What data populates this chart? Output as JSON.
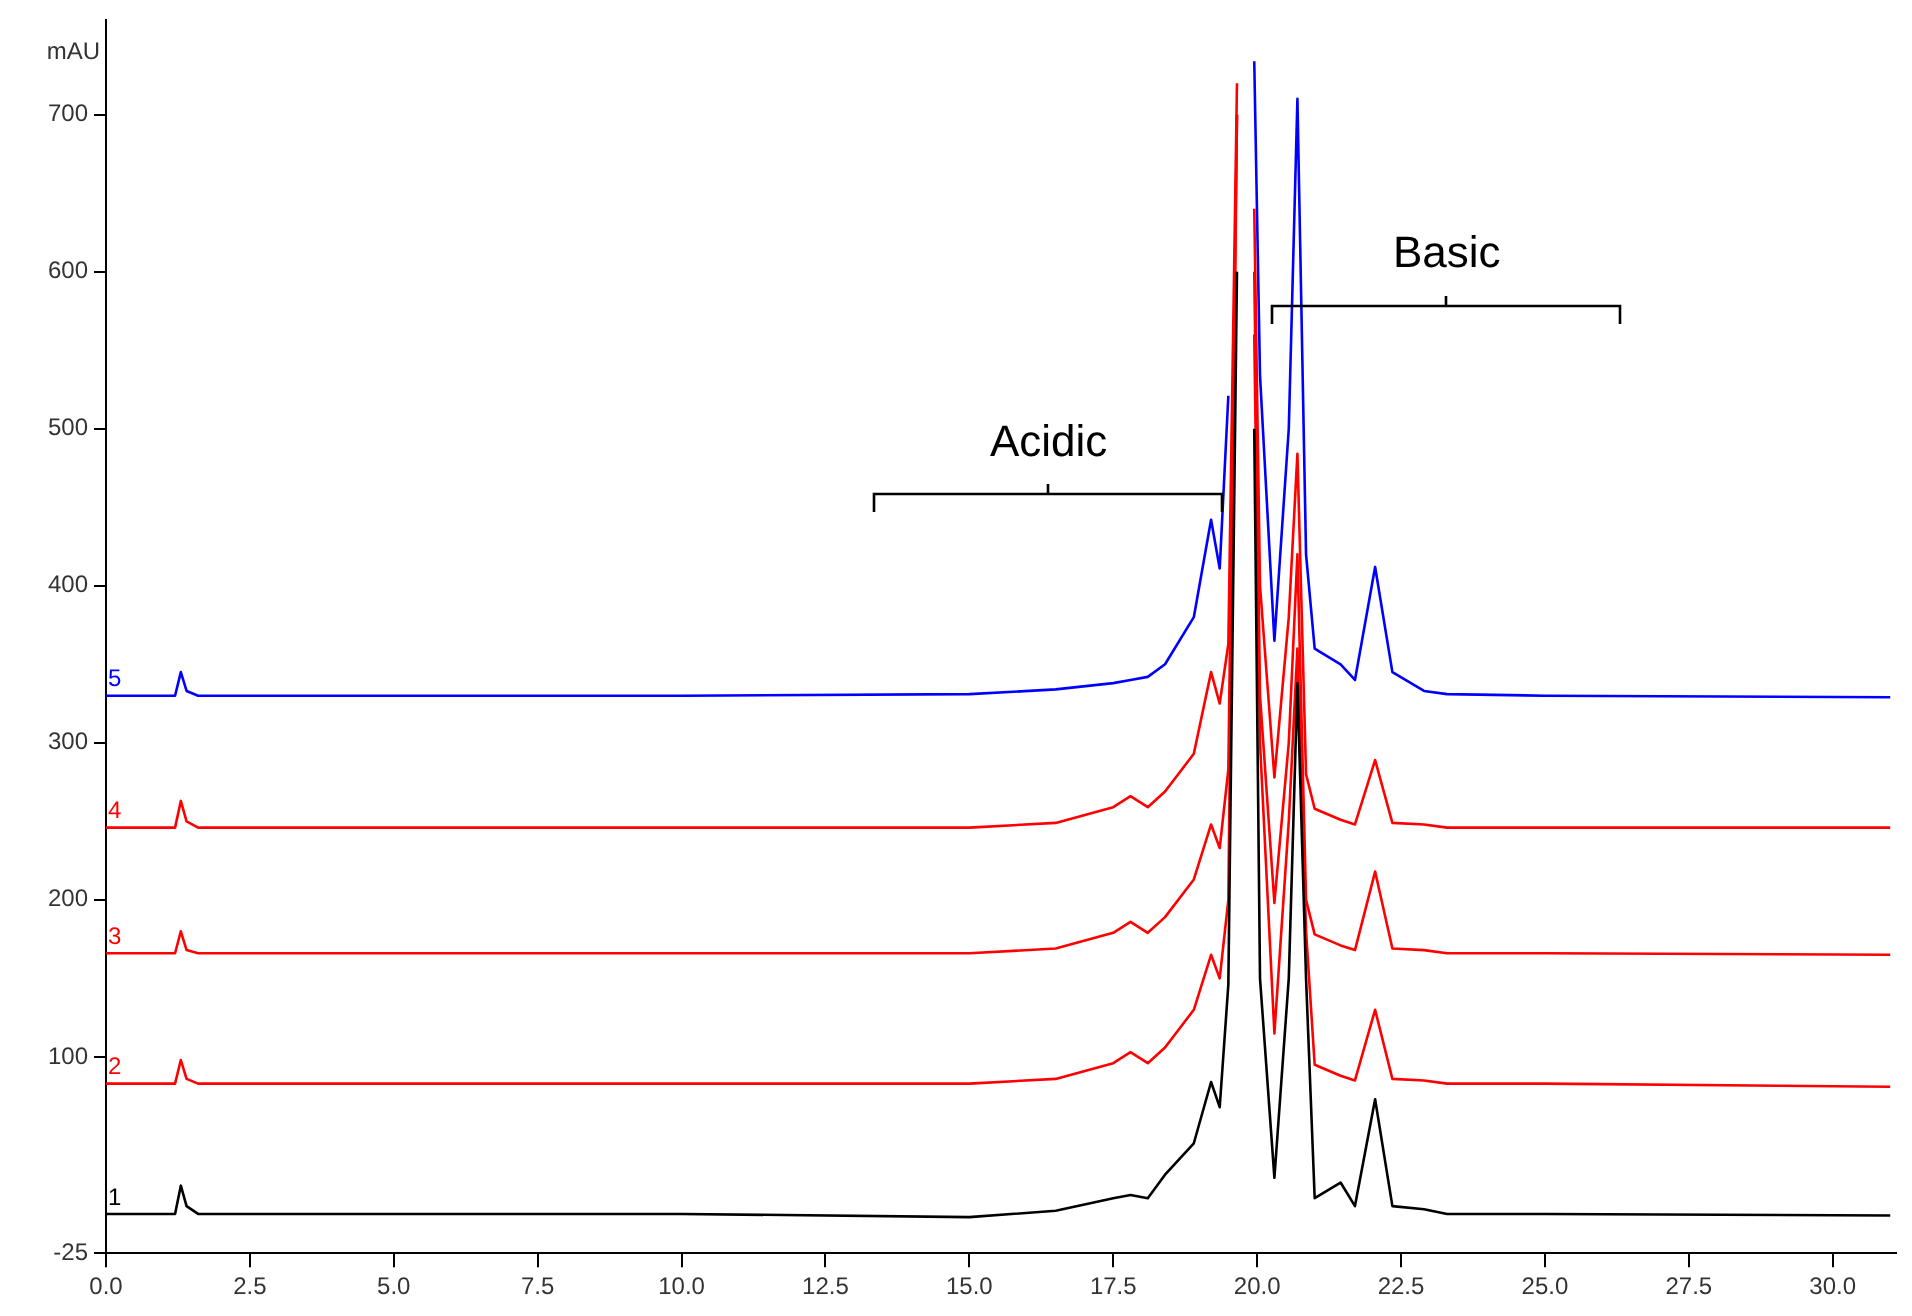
{
  "chart_data": {
    "type": "line",
    "ylabel": "mAU",
    "xlim": [
      0,
      31.1
    ],
    "ylim": [
      -25,
      760
    ],
    "xticks": [
      {
        "value": 0,
        "label": "0.0"
      },
      {
        "value": 2.5,
        "label": "2.5"
      },
      {
        "value": 5,
        "label": "5.0"
      },
      {
        "value": 7.5,
        "label": "7.5"
      },
      {
        "value": 10,
        "label": "10.0"
      },
      {
        "value": 12.5,
        "label": "12.5"
      },
      {
        "value": 15,
        "label": "15.0"
      },
      {
        "value": 17.5,
        "label": "17.5"
      },
      {
        "value": 20,
        "label": "20.0"
      },
      {
        "value": 22.5,
        "label": "22.5"
      },
      {
        "value": 25,
        "label": "25.0"
      },
      {
        "value": 27.5,
        "label": "27.5"
      },
      {
        "value": 30,
        "label": "30.0"
      }
    ],
    "yticks": [
      -25,
      100,
      200,
      300,
      400,
      500,
      600,
      700
    ],
    "grid": false,
    "legend": false,
    "marker": "none",
    "line_style": "solid",
    "x": [
      0,
      1.2,
      1.3,
      1.4,
      1.6,
      10,
      15,
      16.5,
      17.5,
      17.8,
      18.1,
      18.4,
      18.9,
      19.2,
      19.35,
      19.5,
      19.65,
      19.75,
      19.85,
      19.95,
      20.05,
      20.3,
      20.55,
      20.7,
      20.85,
      21.0,
      21.45,
      21.7,
      22.05,
      22.35,
      22.9,
      23.3,
      25,
      31
    ],
    "series": [
      {
        "name": "1",
        "color": "#000000",
        "values": [
          0,
          0,
          18,
          5,
          0,
          0,
          -2,
          2,
          10,
          12,
          10,
          25,
          45,
          84,
          68,
          146,
          600,
          null,
          null,
          500,
          150,
          23,
          150,
          338,
          150,
          10,
          20,
          5,
          73,
          5,
          3,
          0,
          0,
          -1
        ]
      },
      {
        "name": "2",
        "color": "#ff0000",
        "values": [
          83,
          83,
          98,
          86,
          83,
          83,
          83,
          86,
          96,
          103,
          96,
          106,
          130,
          165,
          150,
          200,
          700,
          null,
          null,
          560,
          300,
          115,
          250,
          360,
          180,
          95,
          88,
          85,
          130,
          86,
          85,
          83,
          83,
          81
        ]
      },
      {
        "name": "3",
        "color": "#ff0000",
        "values": [
          166,
          166,
          180,
          168,
          166,
          166,
          166,
          169,
          179,
          186,
          179,
          189,
          213,
          248,
          233,
          283,
          700,
          null,
          null,
          600,
          330,
          198,
          300,
          420,
          200,
          178,
          171,
          168,
          218,
          169,
          168,
          166,
          166,
          165
        ]
      },
      {
        "name": "4",
        "color": "#ff0000",
        "values": [
          246,
          246,
          263,
          250,
          246,
          246,
          246,
          249,
          259,
          266,
          259,
          269,
          293,
          345,
          325,
          363,
          720,
          null,
          null,
          640,
          400,
          278,
          380,
          484,
          280,
          258,
          251,
          248,
          289,
          249,
          248,
          246,
          246,
          246
        ]
      },
      {
        "name": "5",
        "color": "#0000ff",
        "values": [
          330,
          330,
          345,
          333,
          330,
          330,
          331,
          334,
          338,
          340,
          342,
          350,
          380,
          442,
          411,
          521,
          null,
          null,
          null,
          734,
          534,
          365,
          500,
          710,
          420,
          360,
          350,
          340,
          412,
          345,
          333,
          331,
          330,
          329
        ]
      }
    ],
    "annotations": [
      {
        "text": "Acidic",
        "x": 19.4,
        "y": 447
      },
      "Basic"
    ]
  }
}
